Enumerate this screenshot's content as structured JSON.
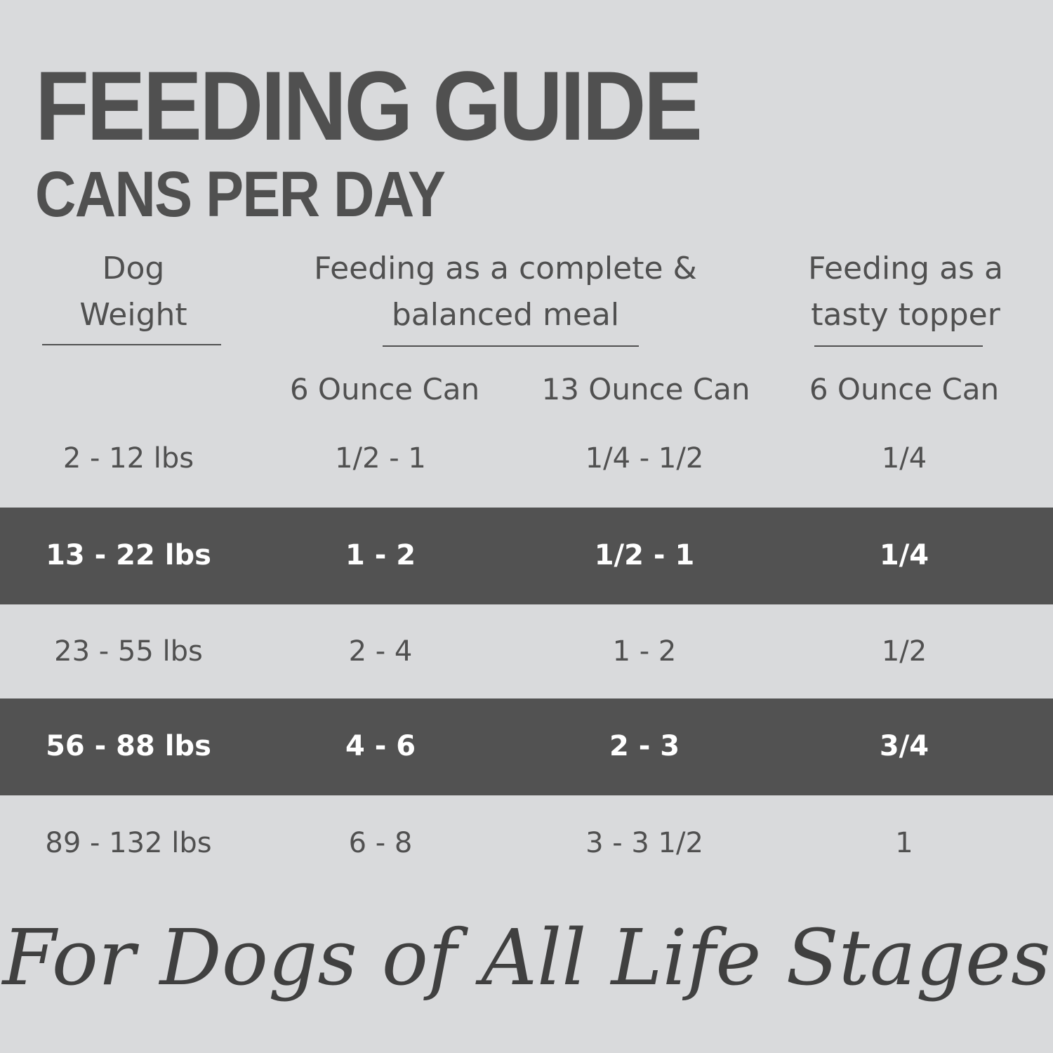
{
  "header": {
    "title": "FEEDING GUIDE",
    "subtitle": "CANS PER DAY"
  },
  "table": {
    "group_headers": [
      "Dog Weight",
      "Feeding as a complete & balanced meal",
      "Feeding as a tasty topper"
    ],
    "sub_headers": [
      "6 Ounce Can",
      "13 Ounce Can",
      "6 Ounce Can"
    ],
    "rows": [
      [
        "2 - 12 lbs",
        "1/2 - 1",
        "1/4 - 1/2",
        "1/4"
      ],
      [
        "13 - 22 lbs",
        "1 - 2",
        "1/2 - 1",
        "1/4"
      ],
      [
        "23 - 55 lbs",
        "2 - 4",
        "1 - 2",
        "1/2"
      ],
      [
        "56 - 88 lbs",
        "4 - 6",
        "2 - 3",
        "3/4"
      ],
      [
        "89 - 132 lbs",
        "6 - 8",
        "3 - 3 1/2",
        "1"
      ]
    ]
  },
  "footer": {
    "tagline": "For Dogs of All Life Stages"
  }
}
